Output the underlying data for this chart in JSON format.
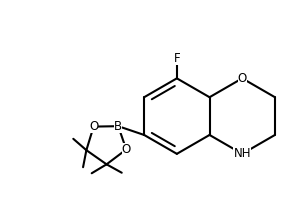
{
  "background": "#ffffff",
  "line_color": "#000000",
  "line_width": 1.5,
  "fig_width": 2.81,
  "fig_height": 2.21,
  "dpi": 100,
  "font_size_label": 8.5,
  "atoms": {
    "F": "F",
    "O_dihydro": "O",
    "NH": "NH",
    "B": "B",
    "O1": "O",
    "O2": "O"
  }
}
